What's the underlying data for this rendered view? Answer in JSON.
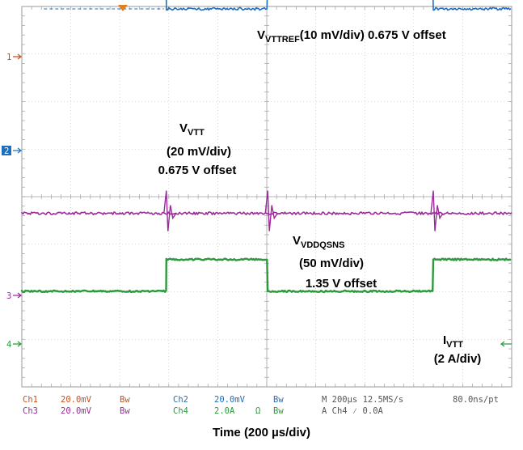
{
  "chart_data": {
    "type": "line",
    "instrument": "oscilloscope",
    "x_label": "Time (200 µs/div)",
    "grid": true,
    "divisions": {
      "horizontal": 10,
      "vertical": 8
    },
    "markers": [
      "1",
      "2",
      "3",
      "4"
    ],
    "annotations": {
      "vttref": {
        "main": "V",
        "sub": "VTTREF",
        "rest": "(10 mV/div) 0.675 V offset"
      },
      "vtt": {
        "main": "V",
        "sub": "VTT",
        "line2": "(20 mV/div)",
        "line3": "0.675 V offset"
      },
      "vddqsns": {
        "main": "V",
        "sub": "VDDQSNS",
        "line2": "(50 mV/div)",
        "line3": "1.35 V offset"
      },
      "ivtt": {
        "main": "I",
        "sub": "VTT",
        "line2": "(2 A/div)"
      }
    },
    "readout": {
      "row1": [
        "Ch1",
        "20.0mV",
        "Bw",
        "Ch2",
        "20.0mV",
        "Bw",
        "M 200µs 12.5MS/s",
        "80.0ns/pt"
      ],
      "row2": [
        "Ch3",
        "20.0mV",
        "Bw",
        "Ch4",
        "2.0A",
        "Ω",
        "Bw",
        "A  Ch4  ⁄  0.0A"
      ]
    },
    "series": [
      {
        "name": "Ch1",
        "color": "#c8501e",
        "x_div": [
          0,
          10
        ],
        "y_div": [
          6.9,
          6.9
        ]
      },
      {
        "name": "Ch2",
        "color": "#1f6fc0",
        "x_div": [
          0,
          2.95,
          2.95,
          5.02,
          5.02,
          8.4,
          8.4,
          10
        ],
        "y_div": [
          4.8,
          4.8,
          3.95,
          3.95,
          4.8,
          4.8,
          3.95,
          3.95
        ]
      },
      {
        "name": "Ch3",
        "color": "#9b2a9b",
        "x_div": [
          0,
          10
        ],
        "y_div": [
          -0.35,
          -0.35
        ]
      },
      {
        "name": "Ch4",
        "color": "#2c9a3c",
        "x_div": [
          0,
          2.95,
          2.95,
          5.02,
          5.02,
          8.4,
          8.4,
          10
        ],
        "y_div": [
          -1.99,
          -1.99,
          -1.32,
          -1.32,
          -1.99,
          -1.99,
          -1.32,
          -1.32
        ]
      }
    ],
    "reference_levels_div": [
      4.8,
      3.95
    ]
  }
}
